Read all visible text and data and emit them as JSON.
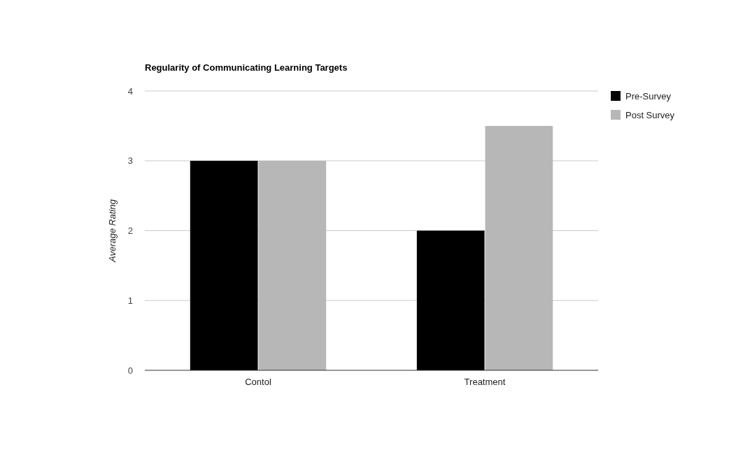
{
  "chart_data": {
    "type": "bar",
    "title": "Regularity of Communicating Learning Targets",
    "ylabel": "Average Rating",
    "categories": [
      "Contol",
      "Treatment"
    ],
    "series": [
      {
        "name": "Pre-Survey",
        "color": "#000000",
        "values": [
          3,
          2
        ]
      },
      {
        "name": "Post Survey",
        "color": "#b7b7b7",
        "values": [
          3,
          3.5
        ]
      }
    ],
    "ylim": [
      0,
      4
    ],
    "yticks": [
      0,
      1,
      2,
      3,
      4
    ],
    "grid": "y",
    "legend": "right"
  }
}
